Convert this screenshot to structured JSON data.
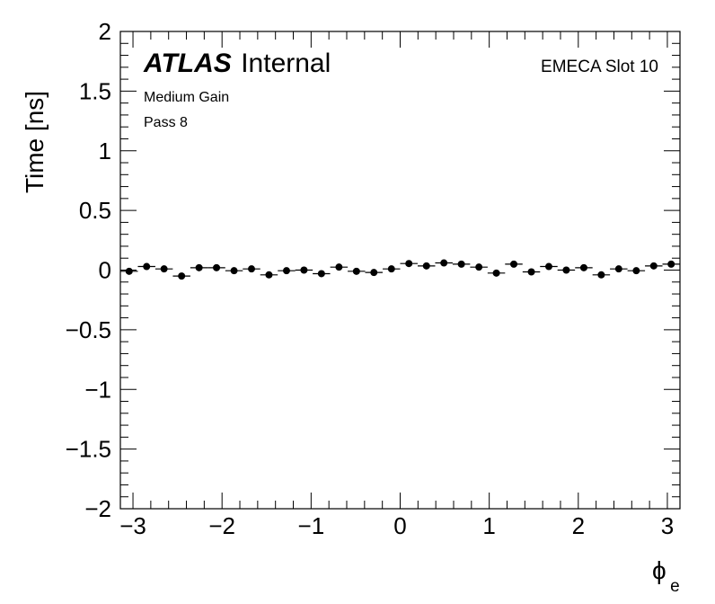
{
  "chart_data": {
    "type": "scatter",
    "experiment": "ATLAS",
    "status": "Internal",
    "region": "EMECA Slot 10",
    "gain": "Medium Gain",
    "pass": "Pass 8",
    "xlabel": "ϕ",
    "xlabel_sub": "e",
    "ylabel": "Time [ns]",
    "xlim": [
      -3.1416,
      3.1416
    ],
    "ylim": [
      -2,
      2
    ],
    "x_ticks": [
      -3,
      -2,
      -1,
      0,
      1,
      2,
      3
    ],
    "x_tick_labels": [
      "−3",
      "−2",
      "−1",
      "0",
      "1",
      "2",
      "3"
    ],
    "y_ticks": [
      -2,
      -1.5,
      -1,
      -0.5,
      0,
      0.5,
      1,
      1.5,
      2
    ],
    "y_tick_labels": [
      "−2",
      "−1.5",
      "−1",
      "−0.5",
      "0",
      "0.5",
      "1",
      "1.5",
      "2"
    ],
    "bin_halfwidth": 0.0982,
    "marker_color": "#000000",
    "x": [
      -3.043,
      -2.847,
      -2.651,
      -2.454,
      -2.258,
      -2.062,
      -1.865,
      -1.669,
      -1.473,
      -1.276,
      -1.08,
      -0.884,
      -0.687,
      -0.491,
      -0.295,
      -0.098,
      0.098,
      0.295,
      0.491,
      0.687,
      0.884,
      1.08,
      1.276,
      1.473,
      1.669,
      1.865,
      2.062,
      2.258,
      2.454,
      2.651,
      2.847,
      3.043
    ],
    "y": [
      -0.01,
      0.03,
      0.01,
      -0.05,
      0.02,
      0.02,
      -0.005,
      0.01,
      -0.04,
      -0.005,
      0.0,
      -0.03,
      0.025,
      -0.01,
      -0.02,
      0.01,
      0.055,
      0.035,
      0.06,
      0.05,
      0.025,
      -0.025,
      0.05,
      -0.015,
      0.03,
      0.0,
      0.02,
      -0.04,
      0.01,
      -0.005,
      0.035,
      0.05
    ]
  }
}
